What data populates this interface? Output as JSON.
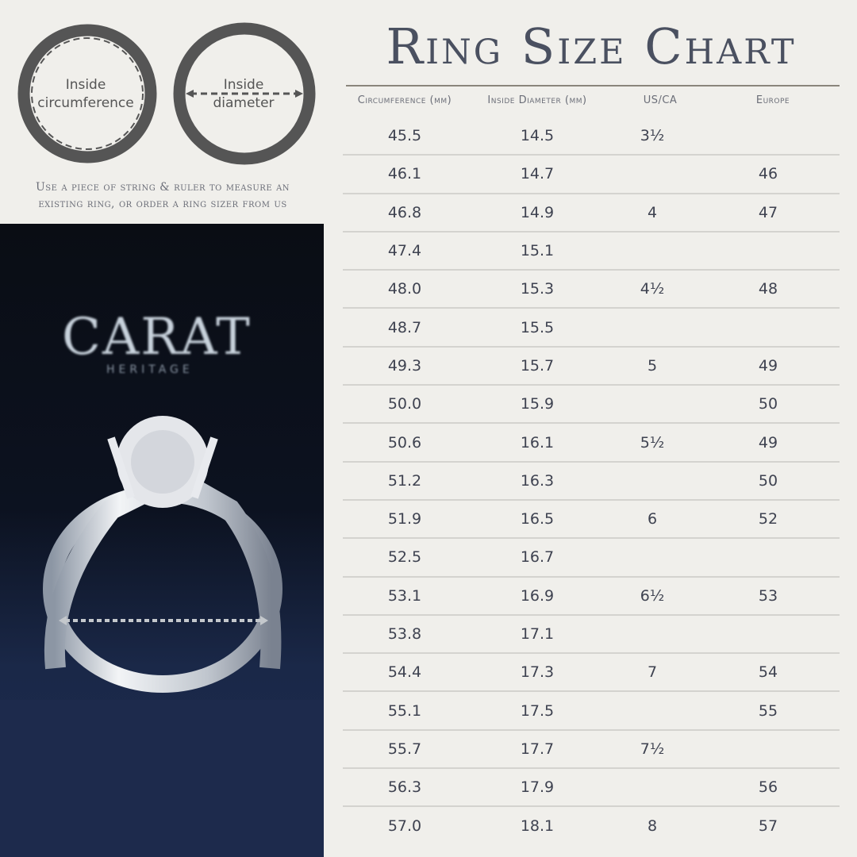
{
  "title": "Ring Size Chart",
  "diagrams": {
    "circumference_label_1": "Inside",
    "circumference_label_2": "circumference",
    "diameter_label_1": "Inside",
    "diameter_label_2": "diameter"
  },
  "tip": "Use a piece of string & ruler to measure an existing ring, or order a ring sizer from us",
  "logo": {
    "name": "CARAT",
    "sub": "HERITAGE"
  },
  "table": {
    "headers": [
      "Circumference (mm)",
      "Inside Diameter (mm)",
      "US/CA",
      "Europe"
    ],
    "rows": [
      [
        "45.5",
        "14.5",
        "3½",
        ""
      ],
      [
        "46.1",
        "14.7",
        "",
        "46"
      ],
      [
        "46.8",
        "14.9",
        "4",
        "47"
      ],
      [
        "47.4",
        "15.1",
        "",
        ""
      ],
      [
        "48.0",
        "15.3",
        "4½",
        "48"
      ],
      [
        "48.7",
        "15.5",
        "",
        ""
      ],
      [
        "49.3",
        "15.7",
        "5",
        "49"
      ],
      [
        "50.0",
        "15.9",
        "",
        "50"
      ],
      [
        "50.6",
        "16.1",
        "5½",
        "49"
      ],
      [
        "51.2",
        "16.3",
        "",
        "50"
      ],
      [
        "51.9",
        "16.5",
        "6",
        "52"
      ],
      [
        "52.5",
        "16.7",
        "",
        ""
      ],
      [
        "53.1",
        "16.9",
        "6½",
        "53"
      ],
      [
        "53.8",
        "17.1",
        "",
        ""
      ],
      [
        "54.4",
        "17.3",
        "7",
        "54"
      ],
      [
        "55.1",
        "17.5",
        "",
        "55"
      ],
      [
        "55.7",
        "17.7",
        "7½",
        ""
      ],
      [
        "56.3",
        "17.9",
        "",
        "56"
      ],
      [
        "57.0",
        "18.1",
        "8",
        "57"
      ]
    ]
  },
  "colors": {
    "background": "#f0efeb",
    "text": "#3e4250",
    "ring_diagram": "#555555",
    "photo_bg": "#1a2848"
  }
}
